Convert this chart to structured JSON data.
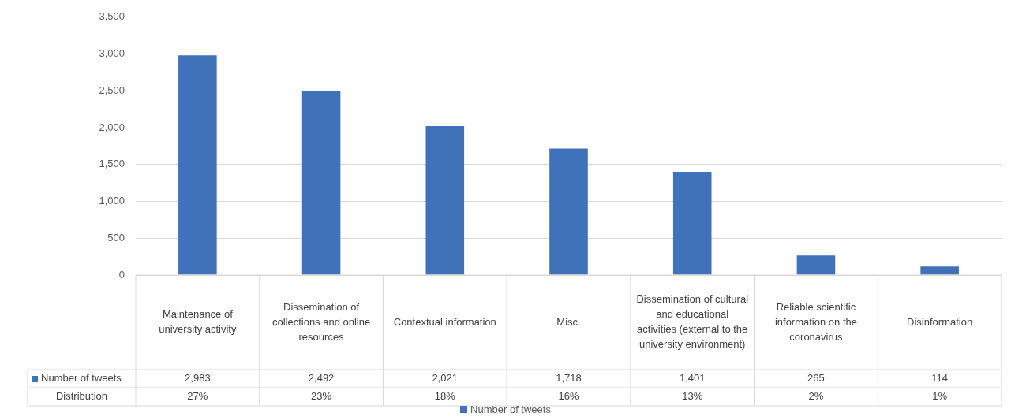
{
  "chart_data": {
    "type": "bar",
    "categories": [
      "Maintenance of university activity",
      "Dissemination of collections and online resources",
      "Contextual information",
      "Misc.",
      "Dissemination of cultural and educational activities (external to the university environment)",
      "Reliable scientific information on the coronavirus",
      "Disinformation"
    ],
    "series": [
      {
        "name": "Number of tweets",
        "color": "#3f72b8",
        "values": [
          2983,
          2492,
          2021,
          1718,
          1401,
          265,
          114
        ],
        "value_labels": [
          "2,983",
          "2,492",
          "2,021",
          "1,718",
          "1,401",
          "265",
          "114"
        ]
      }
    ],
    "ylim": [
      0,
      3500
    ],
    "yticks": [
      0,
      {
        "value": 500,
        "label": "500"
      },
      {
        "value": 1000,
        "label": "1,000"
      },
      {
        "value": 1500,
        "label": "1,500"
      },
      {
        "value": 2000,
        "label": "2,000"
      },
      {
        "value": 2500,
        "label": "2,500"
      },
      {
        "value": 3000,
        "label": "3,000"
      },
      {
        "value": 3500,
        "label": "3,500"
      }
    ],
    "grid": "y",
    "legend": "bottom",
    "annotations": [
      "Distribution",
      "27%",
      "23%",
      "18%",
      "16%",
      "13%",
      "2%",
      "1%"
    ]
  }
}
